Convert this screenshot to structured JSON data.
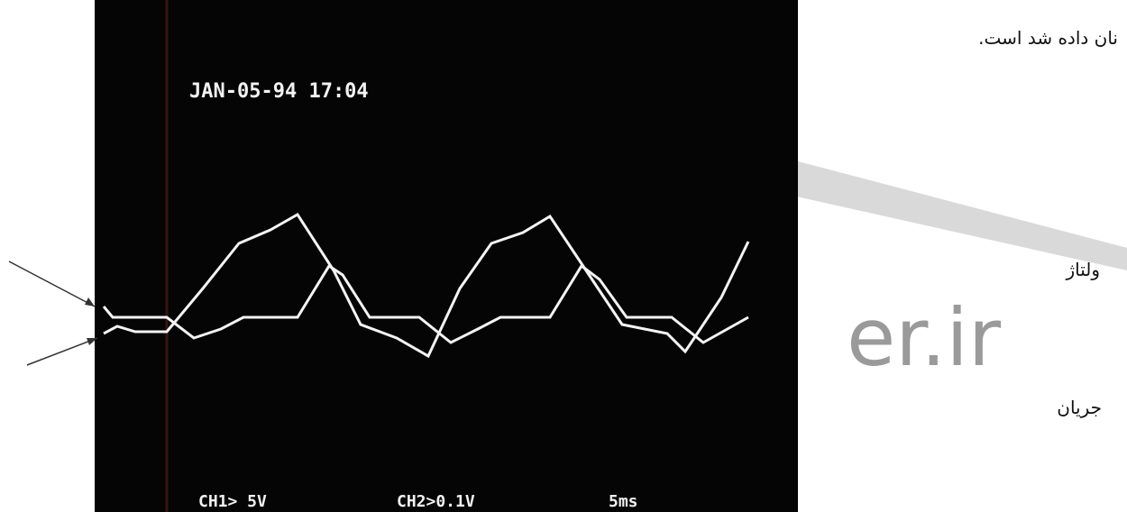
{
  "text": {
    "caption": "نان داده شد است.",
    "voltage_label": "ولتاژ",
    "current_label": "جریان",
    "watermark": "er.ir"
  },
  "scope": {
    "timestamp": "JAN-05-94 17:04",
    "ch1": "CH1> 5V",
    "ch2": "CH2>0.1V",
    "timebase": "5ms"
  }
}
